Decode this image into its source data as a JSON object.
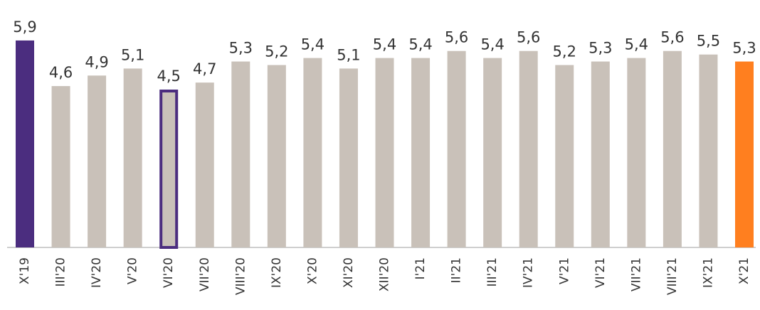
{
  "chart_data": {
    "type": "bar",
    "categories": [
      "X'19",
      "III'20",
      "IV'20",
      "V'20",
      "VI'20",
      "VII'20",
      "VIII'20",
      "IX'20",
      "X'20",
      "XI'20",
      "XII'20",
      "I'21",
      "II'21",
      "III'21",
      "IV'21",
      "V'21",
      "VI'21",
      "VII'21",
      "VIII'21",
      "IX'21",
      "X'21"
    ],
    "values": [
      5.9,
      4.6,
      4.9,
      5.1,
      4.5,
      4.7,
      5.3,
      5.2,
      5.4,
      5.1,
      5.4,
      5.4,
      5.6,
      5.4,
      5.6,
      5.2,
      5.3,
      5.4,
      5.6,
      5.5,
      5.3
    ],
    "value_labels": [
      "5,9",
      "4,6",
      "4,9",
      "5,1",
      "4,5",
      "4,7",
      "5,3",
      "5,2",
      "5,4",
      "5,1",
      "5,4",
      "5,4",
      "5,6",
      "5,4",
      "5,6",
      "5,2",
      "5,3",
      "5,4",
      "5,6",
      "5,5",
      "5,3"
    ],
    "colors": [
      "#4b2d7f",
      "#c9c1b9",
      "#c9c1b9",
      "#c9c1b9",
      "#c9c1b9",
      "#c9c1b9",
      "#c9c1b9",
      "#c9c1b9",
      "#c9c1b9",
      "#c9c1b9",
      "#c9c1b9",
      "#c9c1b9",
      "#c9c1b9",
      "#c9c1b9",
      "#c9c1b9",
      "#c9c1b9",
      "#c9c1b9",
      "#c9c1b9",
      "#c9c1b9",
      "#c9c1b9",
      "#ff7f1f"
    ],
    "edge_colors": [
      null,
      null,
      null,
      null,
      "#4b2d7f",
      null,
      null,
      null,
      null,
      null,
      null,
      null,
      null,
      null,
      null,
      null,
      null,
      null,
      null,
      null,
      null
    ],
    "ylim": [
      0,
      6
    ]
  }
}
